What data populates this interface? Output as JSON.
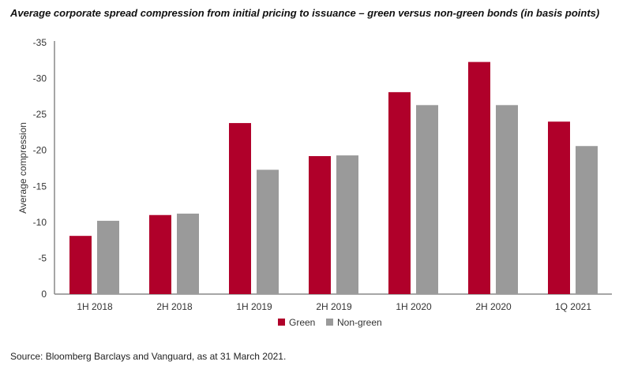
{
  "chart_data": {
    "type": "bar",
    "title": "Average corporate spread compression from initial pricing to issuance – green versus non-green bonds (in basis points)",
    "xlabel": "",
    "ylabel": "Average compression",
    "ylim": [
      0,
      -35
    ],
    "yticks": [
      "0",
      "-5",
      "-10",
      "-15",
      "-20",
      "-25",
      "-30",
      "-35"
    ],
    "categories": [
      "1H 2018",
      "2H 2018",
      "1H 2019",
      "2H 2019",
      "1H 2020",
      "2H 2020",
      "1Q 2021"
    ],
    "series": [
      {
        "name": "Green",
        "color": "#b0002a",
        "values": [
          -8.1,
          -11.0,
          -23.8,
          -19.2,
          -28.1,
          -32.3,
          -24.0
        ]
      },
      {
        "name": "Non-green",
        "color": "#9a9a9a",
        "values": [
          -10.2,
          -11.2,
          -17.3,
          -19.3,
          -26.3,
          -26.3,
          -20.6
        ]
      }
    ],
    "grid": false,
    "legend": "bottom-center"
  },
  "source": "Source: Bloomberg Barclays and Vanguard, as at 31 March 2021."
}
